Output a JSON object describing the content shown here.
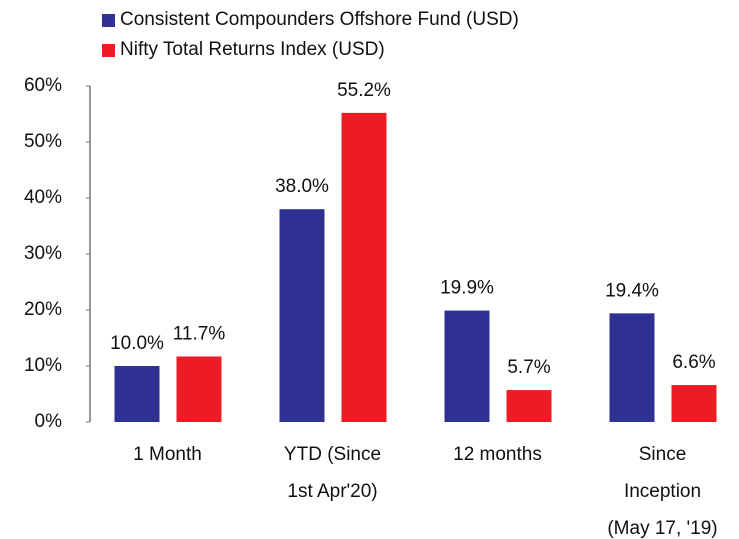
{
  "chart_data": {
    "type": "bar",
    "categories": [
      [
        "1 Month"
      ],
      [
        "YTD (Since",
        "1st Apr'20)"
      ],
      [
        "12 months"
      ],
      [
        "Since",
        "Inception",
        "(May 17, '19)"
      ]
    ],
    "series": [
      {
        "name": "Consistent Compounders Offshore Fund (USD)",
        "color": "#2e3192",
        "values": [
          10.0,
          38.0,
          19.9,
          19.4
        ],
        "value_labels": [
          "10.0%",
          "38.0%",
          "19.9%",
          "19.4%"
        ]
      },
      {
        "name": "Nifty Total Returns Index (USD)",
        "color": "#ed1c24",
        "values": [
          11.7,
          55.2,
          5.7,
          6.6
        ],
        "value_labels": [
          "11.7%",
          "55.2%",
          "5.7%",
          "6.6%"
        ]
      }
    ],
    "ylim": [
      0,
      60
    ],
    "yticks": [
      {
        "value": 0,
        "label": "0%"
      },
      {
        "value": 10,
        "label": "10%"
      },
      {
        "value": 20,
        "label": "20%"
      },
      {
        "value": 30,
        "label": "30%"
      },
      {
        "value": 40,
        "label": "40%"
      },
      {
        "value": 50,
        "label": "50%"
      },
      {
        "value": 60,
        "label": "60%"
      }
    ],
    "grid": false,
    "legend": "top"
  }
}
